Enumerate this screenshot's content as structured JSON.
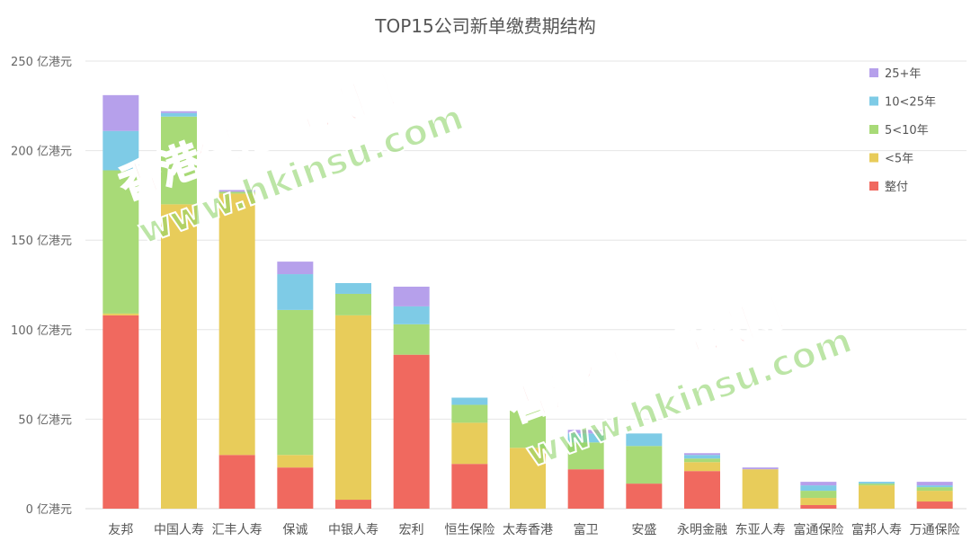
{
  "chart_data": {
    "type": "bar",
    "stacked": true,
    "title": "TOP15公司新单缴费期结构",
    "categories": [
      "友邦",
      "中国人寿",
      "汇丰人寿",
      "保诚",
      "中银人寿",
      "宏利",
      "恒生保险",
      "太寿香港",
      "富卫",
      "安盛",
      "永明金融",
      "东亚人寿",
      "富通保险",
      "富邦人寿",
      "万通保险"
    ],
    "series": [
      {
        "name": "整付",
        "color": "#f0695f",
        "values": [
          108,
          0,
          30,
          23,
          5,
          86,
          25,
          0,
          22,
          14,
          21,
          0,
          2,
          0,
          4
        ]
      },
      {
        "name": "<5年",
        "color": "#e8cc5a",
        "values": [
          1,
          170,
          146,
          7,
          103,
          0,
          23,
          34,
          0,
          0,
          5,
          22,
          4,
          13,
          6
        ]
      },
      {
        "name": "5<10年",
        "color": "#a8da77",
        "values": [
          80,
          49,
          1,
          81,
          12,
          17,
          10,
          21,
          15,
          21,
          2,
          0,
          4,
          1,
          2
        ]
      },
      {
        "name": "10<25年",
        "color": "#7ecbe6",
        "values": [
          22,
          2,
          0,
          20,
          6,
          10,
          4,
          0,
          5,
          7,
          2,
          0,
          3,
          1,
          1
        ]
      },
      {
        "name": "25+年",
        "color": "#b6a0eb",
        "values": [
          20,
          1,
          1,
          7,
          0,
          11,
          0,
          0,
          2,
          0,
          1,
          1,
          2,
          0,
          2
        ]
      }
    ],
    "ylim": [
      0,
      250
    ],
    "yticks": [
      0,
      50,
      100,
      150,
      200,
      250
    ],
    "ytick_labels": [
      "0 亿港元",
      "50 亿港元",
      "100 亿港元",
      "150 亿港元",
      "200 亿港元",
      "250 亿港元"
    ],
    "legend_order": [
      "25+年",
      "10<25年",
      "5<10年",
      "<5年",
      "整付"
    ],
    "legend_position": "top-right",
    "grid": true
  },
  "watermark": {
    "line1": "香港保险资讯网",
    "line2": "www.hkinsu.com"
  }
}
